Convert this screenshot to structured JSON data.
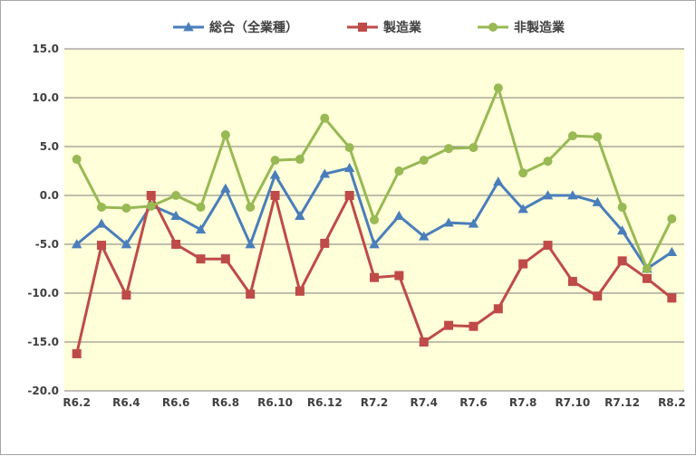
{
  "chart_data": {
    "type": "line",
    "x": [
      "R6.2",
      "R6.3",
      "R6.4",
      "R6.5",
      "R6.6",
      "R6.7",
      "R6.8",
      "R6.9",
      "R6.10",
      "R6.11",
      "R6.12",
      "R7.1",
      "R7.2",
      "R7.3",
      "R7.4",
      "R7.5",
      "R7.6",
      "R7.7",
      "R7.8",
      "R7.9",
      "R7.10",
      "R7.11",
      "R7.12",
      "R8.1",
      "R8.2"
    ],
    "x_tick_labels": [
      "R6.2",
      "R6.4",
      "R6.6",
      "R6.8",
      "R6.10",
      "R6.12",
      "R7.2",
      "R7.4",
      "R7.6",
      "R7.8",
      "R7.10",
      "R7.12",
      "R8.2"
    ],
    "ylim": [
      -20,
      15
    ],
    "y_ticks": [
      "15.0",
      "10.0",
      "5.0",
      "0.0",
      "-5.0",
      "-10.0",
      "-15.0",
      "-20.0"
    ],
    "grid": true,
    "legend_position": "top",
    "plot_background": "#ffffd9",
    "series": [
      {
        "name": "総合（全業種）",
        "color": "#4a7ebb",
        "marker": "triangle",
        "values": [
          -5.0,
          -2.9,
          -5.0,
          -1.0,
          -2.1,
          -3.5,
          0.7,
          -5.0,
          2.1,
          -2.1,
          2.2,
          2.8,
          -5.0,
          -2.1,
          -4.2,
          -2.8,
          -2.9,
          1.4,
          -1.4,
          0.0,
          0.0,
          -0.7,
          -3.6,
          -7.5,
          -5.8
        ]
      },
      {
        "name": "製造業",
        "color": "#be4b48",
        "marker": "square",
        "values": [
          -16.2,
          -5.1,
          -10.2,
          0.0,
          -5.0,
          -6.5,
          -6.5,
          -10.1,
          0.0,
          -9.8,
          -4.9,
          0.0,
          -8.4,
          -8.2,
          -15.0,
          -13.3,
          -13.4,
          -11.6,
          -7.0,
          -5.1,
          -8.8,
          -10.3,
          -6.7,
          -8.5,
          -10.5
        ]
      },
      {
        "name": "非製造業",
        "color": "#98b954",
        "marker": "circle",
        "values": [
          3.7,
          -1.2,
          -1.3,
          -1.1,
          0.0,
          -1.2,
          6.2,
          -1.2,
          3.6,
          3.7,
          7.9,
          4.9,
          -2.5,
          2.5,
          3.6,
          4.8,
          4.9,
          11.0,
          2.3,
          3.5,
          6.1,
          6.0,
          -1.2,
          -7.5,
          -2.4
        ]
      }
    ]
  }
}
